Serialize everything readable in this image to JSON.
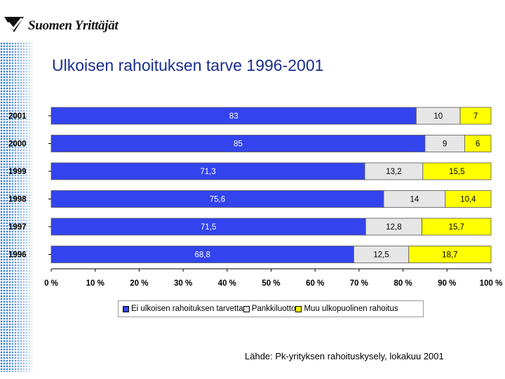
{
  "logo": {
    "text": "Suomen Yrittäjät",
    "icon": "triangle-check-icon"
  },
  "chart_data": {
    "type": "bar",
    "orientation": "horizontal",
    "stacked": true,
    "title": "Ulkoisen rahoituksen tarve 1996-2001",
    "categories": [
      "2001",
      "2000",
      "1999",
      "1998",
      "1997",
      "1996"
    ],
    "series": [
      {
        "name": "Ei ulkoisen rahoituksen tarvetta",
        "color": "#3344ee",
        "values": [
          83,
          85,
          71.3,
          75.6,
          71.5,
          68.8
        ],
        "labels": [
          "83",
          "85",
          "71,3",
          "75,6",
          "71,5",
          "68,8"
        ]
      },
      {
        "name": "Pankkiluotto",
        "color": "#e6e6e6",
        "values": [
          10,
          9,
          13.2,
          14,
          12.8,
          12.5
        ],
        "labels": [
          "10",
          "9",
          "13,2",
          "14",
          "12,8",
          "12,5"
        ]
      },
      {
        "name": "Muu ulkopuolinen rahoitus",
        "color": "#ffff00",
        "values": [
          7,
          6,
          15.5,
          10.4,
          15.7,
          18.7
        ],
        "labels": [
          "7",
          "6",
          "15,5",
          "10,4",
          "15,7",
          "18,7"
        ]
      }
    ],
    "xlim": [
      0,
      100
    ],
    "xticks": [
      "0 %",
      "10 %",
      "20 %",
      "30 %",
      "40 %",
      "50 %",
      "60 %",
      "70 %",
      "80 %",
      "90 %",
      "100 %"
    ],
    "legend_position": "bottom",
    "grid": false
  },
  "source": "Lähde: Pk-yrityksen rahoituskysely, lokakuu 2001"
}
